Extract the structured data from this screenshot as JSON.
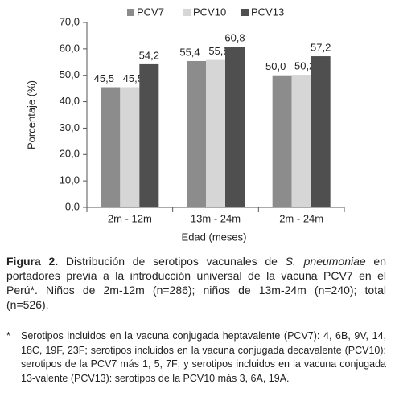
{
  "chart_data": {
    "type": "bar",
    "categories": [
      "2m - 12m",
      "13m - 24m",
      "2m - 24m"
    ],
    "series": [
      {
        "name": "PCV7",
        "color": "#8c8c8c",
        "values": [
          45.5,
          55.4,
          50.0
        ],
        "value_labels": [
          "45,5",
          "55,4",
          "50,0"
        ]
      },
      {
        "name": "PCV10",
        "color": "#d6d6d6",
        "values": [
          45.5,
          55.8,
          50.2
        ],
        "value_labels": [
          "45,5",
          "55,8",
          "50,2"
        ]
      },
      {
        "name": "PCV13",
        "color": "#4f4f4f",
        "values": [
          54.2,
          60.8,
          57.2
        ],
        "value_labels": [
          "54,2",
          "60,8",
          "57,2"
        ]
      }
    ],
    "ylabel": "Porcentaje (%)",
    "xlabel": "Edad (meses)",
    "ylim": [
      0,
      70
    ],
    "yticks": [
      {
        "value": 0,
        "label": "0,0"
      },
      {
        "value": 10,
        "label": "10,0"
      },
      {
        "value": 20,
        "label": "20,0"
      },
      {
        "value": 30,
        "label": "30,0"
      },
      {
        "value": 40,
        "label": "40,0"
      },
      {
        "value": 50,
        "label": "50,0"
      },
      {
        "value": 60,
        "label": "60,0"
      },
      {
        "value": 70,
        "label": "70,0"
      }
    ],
    "legend": "top"
  },
  "caption": {
    "label": "Figura 2.",
    "text_before": " Distribución de serotipos vacunales de ",
    "species": "S. pneumoniae",
    "text_after": " en portadores previa a la introducción universal de la vacuna PCV7 en el Perú*. Niños de 2m-12m (n=286); niños de 13m-24m (n=240); total (n=526)."
  },
  "footnote": {
    "marker": "*",
    "text": "Serotipos incluidos en la vacuna conjugada heptavalente (PCV7): 4, 6B, 9V, 14, 18C, 19F, 23F; serotipos incluidos en la vacuna conjugada decavalente (PCV10): serotipos de la PCV7 más 1, 5, 7F; y serotipos incluidos en la vacuna conjugada 13-valente (PCV13): serotipos de la PCV10 más 3, 6A, 19A."
  }
}
